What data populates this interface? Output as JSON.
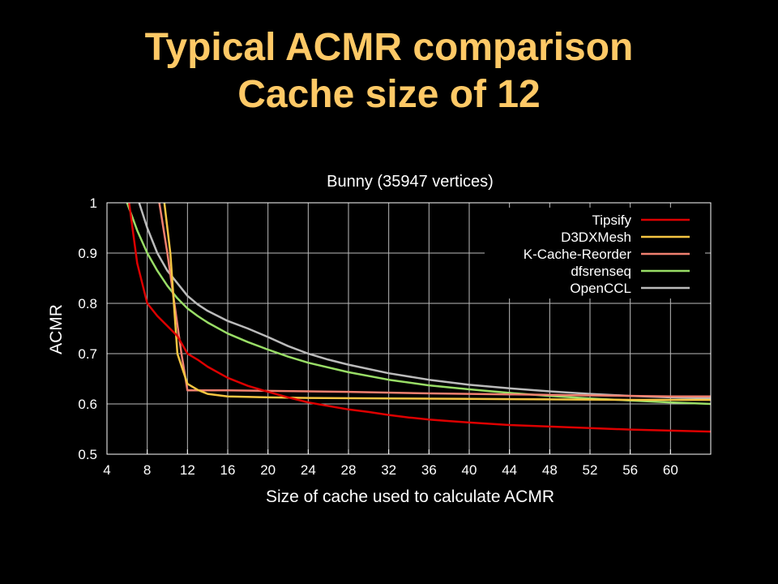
{
  "slide": {
    "title_line1": "Typical ACMR comparison",
    "title_line2": "Cache size of 12",
    "title_color": "#FFC966",
    "background": "#000000"
  },
  "chart_data": {
    "type": "line",
    "title": "Bunny (35947 vertices)",
    "xlabel": "Size of cache used to calculate ACMR",
    "ylabel": "ACMR",
    "xlim": [
      4,
      64
    ],
    "ylim": [
      0.5,
      1
    ],
    "xticks": [
      4,
      8,
      12,
      16,
      20,
      24,
      28,
      32,
      36,
      40,
      44,
      48,
      52,
      56,
      60
    ],
    "yticks": [
      0.5,
      0.6,
      0.7,
      0.8,
      0.9,
      1
    ],
    "grid": true,
    "legend_position": "top-right",
    "series": [
      {
        "name": "Tipsify",
        "color": "#DD0000",
        "x": [
          6.2,
          7,
          8,
          9,
          10,
          11,
          12,
          13,
          14,
          16,
          18,
          20,
          22,
          24,
          26,
          28,
          30,
          32,
          34,
          36,
          38,
          40,
          44,
          48,
          52,
          56,
          60,
          62,
          64
        ],
        "y": [
          1.0,
          0.88,
          0.8,
          0.775,
          0.755,
          0.735,
          0.7,
          0.688,
          0.674,
          0.652,
          0.636,
          0.624,
          0.613,
          0.603,
          0.596,
          0.589,
          0.584,
          0.578,
          0.573,
          0.569,
          0.566,
          0.563,
          0.558,
          0.555,
          0.552,
          0.549,
          0.547,
          0.546,
          0.545
        ]
      },
      {
        "name": "D3DXMesh",
        "color": "#F5C542",
        "x": [
          9.7,
          10.3,
          11,
          11.5,
          12,
          13,
          14,
          16,
          20,
          24,
          32,
          40,
          48,
          56,
          64
        ],
        "y": [
          1.0,
          0.9,
          0.7,
          0.67,
          0.64,
          0.628,
          0.62,
          0.615,
          0.613,
          0.612,
          0.611,
          0.61,
          0.609,
          0.608,
          0.608
        ]
      },
      {
        "name": "K-Cache-Reorder",
        "color": "#F08070",
        "x": [
          9.2,
          10,
          10.7,
          11.4,
          12,
          16,
          20,
          28,
          36,
          44,
          52,
          60,
          64
        ],
        "y": [
          1.0,
          0.9,
          0.8,
          0.7,
          0.627,
          0.627,
          0.626,
          0.624,
          0.621,
          0.619,
          0.617,
          0.615,
          0.615
        ]
      },
      {
        "name": "dfsrenseq",
        "color": "#99DD66",
        "x": [
          6,
          7,
          8,
          9,
          10,
          11,
          12,
          13,
          14,
          16,
          18,
          20,
          22,
          24,
          28,
          32,
          36,
          40,
          44,
          48,
          52,
          56,
          60,
          64
        ],
        "y": [
          1.0,
          0.945,
          0.9,
          0.865,
          0.835,
          0.81,
          0.79,
          0.775,
          0.762,
          0.74,
          0.723,
          0.708,
          0.694,
          0.682,
          0.663,
          0.648,
          0.637,
          0.629,
          0.622,
          0.616,
          0.611,
          0.607,
          0.603,
          0.6
        ]
      },
      {
        "name": "OpenCCL",
        "color": "#BBBBBB",
        "x": [
          7.2,
          8,
          9,
          10,
          11,
          12,
          13,
          14,
          16,
          18,
          20,
          22,
          24,
          26,
          28,
          32,
          36,
          40,
          44,
          48,
          52,
          56,
          60,
          64
        ],
        "y": [
          1.0,
          0.95,
          0.9,
          0.865,
          0.84,
          0.815,
          0.798,
          0.785,
          0.765,
          0.75,
          0.733,
          0.715,
          0.7,
          0.688,
          0.678,
          0.661,
          0.648,
          0.638,
          0.631,
          0.625,
          0.62,
          0.616,
          0.613,
          0.611
        ]
      }
    ]
  }
}
